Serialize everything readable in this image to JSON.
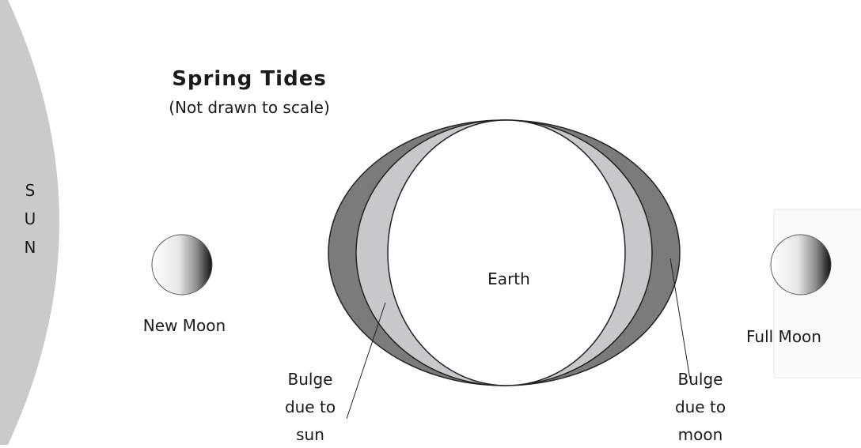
{
  "title": "Spring Tides",
  "subtitle": "(Not drawn to scale)",
  "sun": {
    "letters": [
      "S",
      "U",
      "N"
    ]
  },
  "earth": {
    "label": "Earth"
  },
  "new_moon": {
    "label": "New Moon"
  },
  "full_moon": {
    "label": "Full Moon"
  },
  "bulge_sun": {
    "lines": [
      "Bulge",
      "due to",
      "sun"
    ]
  },
  "bulge_moon": {
    "lines": [
      "Bulge",
      "due to",
      "moon"
    ]
  }
}
